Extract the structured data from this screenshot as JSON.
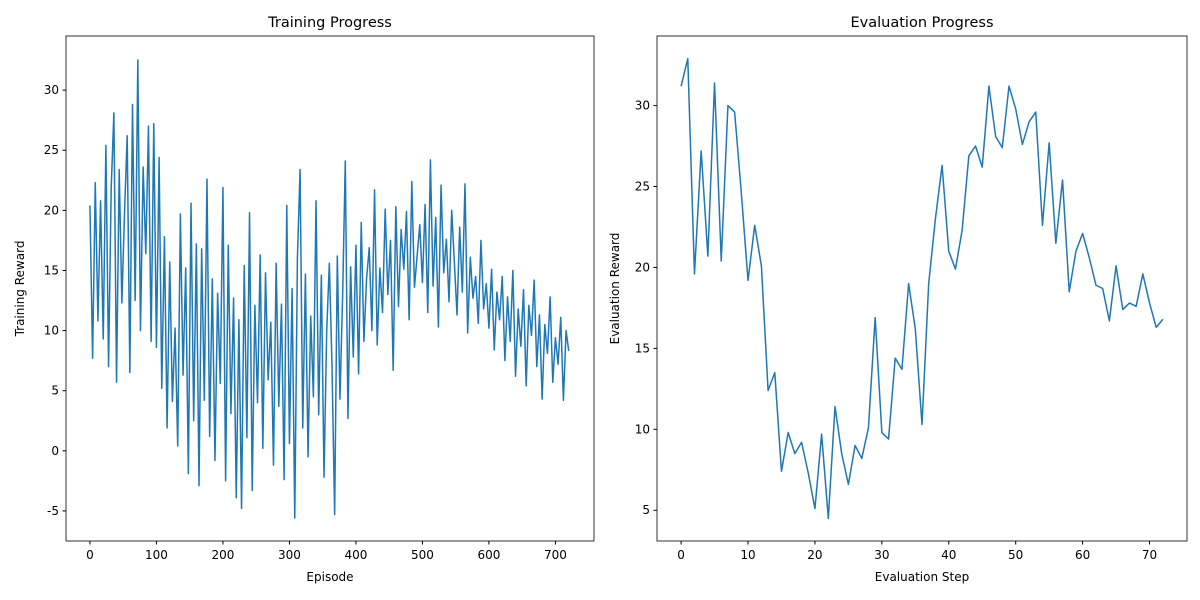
{
  "chart_data": [
    {
      "type": "line",
      "title": "Training Progress",
      "xlabel": "Episode",
      "ylabel": "Training Reward",
      "color": "#1f77b4",
      "x": [
        0,
        4,
        8,
        12,
        16,
        20,
        24,
        28,
        32,
        36,
        40,
        44,
        48,
        52,
        56,
        60,
        64,
        68,
        72,
        76,
        80,
        84,
        88,
        92,
        96,
        100,
        104,
        108,
        112,
        116,
        120,
        124,
        128,
        132,
        136,
        140,
        144,
        148,
        152,
        156,
        160,
        164,
        168,
        172,
        176,
        180,
        184,
        188,
        192,
        196,
        200,
        204,
        208,
        212,
        216,
        220,
        224,
        228,
        232,
        236,
        240,
        244,
        248,
        252,
        256,
        260,
        264,
        268,
        272,
        276,
        280,
        284,
        288,
        292,
        296,
        300,
        304,
        308,
        312,
        316,
        320,
        324,
        328,
        332,
        336,
        340,
        344,
        348,
        352,
        356,
        360,
        364,
        368,
        372,
        376,
        380,
        384,
        388,
        392,
        396,
        400,
        404,
        408,
        412,
        416,
        420,
        424,
        428,
        432,
        436,
        440,
        444,
        448,
        452,
        456,
        460,
        464,
        468,
        472,
        476,
        480,
        484,
        488,
        492,
        496,
        500,
        504,
        508,
        512,
        516,
        520,
        524,
        528,
        532,
        536,
        540,
        544,
        548,
        552,
        556,
        560,
        564,
        568,
        572,
        576,
        580,
        584,
        588,
        592,
        596,
        600,
        604,
        608,
        612,
        616,
        620,
        624,
        628,
        632,
        636,
        640,
        644,
        648,
        652,
        656,
        660,
        664,
        668,
        672,
        676,
        680,
        684,
        688,
        692,
        696,
        700,
        704,
        708,
        712,
        716,
        720
      ],
      "values": [
        20.4,
        7.7,
        22.3,
        10.8,
        20.8,
        9.3,
        25.4,
        7.0,
        21.9,
        28.1,
        5.7,
        23.4,
        12.3,
        19.8,
        26.2,
        6.5,
        28.8,
        12.5,
        32.5,
        10.0,
        23.6,
        16.4,
        27.0,
        9.1,
        27.2,
        8.6,
        24.4,
        5.2,
        17.8,
        1.9,
        15.7,
        4.1,
        10.2,
        0.4,
        19.7,
        6.3,
        15.2,
        -1.9,
        20.6,
        2.5,
        17.2,
        -2.9,
        16.8,
        4.2,
        22.6,
        1.2,
        14.3,
        -0.8,
        13.1,
        5.6,
        21.9,
        -2.5,
        17.1,
        3.1,
        12.7,
        -3.9,
        10.9,
        -4.8,
        15.4,
        1.1,
        19.8,
        -3.3,
        12.1,
        4.0,
        16.3,
        0.2,
        14.8,
        5.9,
        10.7,
        -1.2,
        15.6,
        3.7,
        12.2,
        -2.4,
        20.4,
        0.6,
        13.5,
        -5.6,
        16.1,
        23.4,
        1.9,
        14.7,
        -0.5,
        11.2,
        4.5,
        20.8,
        3.0,
        14.6,
        -2.2,
        9.9,
        15.6,
        7.1,
        -5.3,
        16.2,
        4.3,
        12.9,
        24.1,
        2.7,
        15.3,
        7.8,
        17.1,
        6.4,
        19.0,
        9.1,
        14.3,
        16.9,
        10.0,
        21.7,
        8.8,
        15.2,
        11.5,
        20.1,
        13.0,
        17.5,
        6.7,
        20.3,
        12.0,
        18.4,
        15.1,
        19.9,
        10.9,
        22.4,
        13.6,
        16.2,
        18.8,
        14.0,
        20.5,
        11.5,
        24.2,
        13.7,
        19.4,
        10.3,
        22.1,
        14.8,
        17.6,
        12.4,
        20.0,
        15.7,
        11.3,
        18.6,
        13.2,
        22.2,
        9.8,
        16.1,
        12.7,
        14.5,
        10.6,
        17.5,
        11.8,
        13.9,
        10.2,
        15.1,
        8.4,
        13.2,
        10.9,
        14.5,
        7.5,
        12.8,
        9.1,
        15.0,
        6.2,
        11.8,
        8.7,
        13.4,
        5.4,
        12.1,
        9.6,
        14.2,
        7.0,
        11.3,
        4.3,
        10.5,
        8.1,
        12.8,
        5.7,
        9.4,
        7.2,
        11.1,
        4.2,
        10.0,
        8.3
      ],
      "xlim": [
        -36,
        758
      ],
      "xticks": [
        0,
        100,
        200,
        300,
        400,
        500,
        600,
        700
      ],
      "ylim": [
        -7.5,
        34.5
      ],
      "yticks": [
        -5,
        0,
        5,
        10,
        15,
        20,
        25,
        30
      ]
    },
    {
      "type": "line",
      "title": "Evaluation Progress",
      "xlabel": "Evaluation Step",
      "ylabel": "Evaluation Reward",
      "color": "#1f77b4",
      "x": [
        0,
        1,
        2,
        3,
        4,
        5,
        6,
        7,
        8,
        9,
        10,
        11,
        12,
        13,
        14,
        15,
        16,
        17,
        18,
        19,
        20,
        21,
        22,
        23,
        24,
        25,
        26,
        27,
        28,
        29,
        30,
        31,
        32,
        33,
        34,
        35,
        36,
        37,
        38,
        39,
        40,
        41,
        42,
        43,
        44,
        45,
        46,
        47,
        48,
        49,
        50,
        51,
        52,
        53,
        54,
        55,
        56,
        57,
        58,
        59,
        60,
        61,
        62,
        63,
        64,
        65,
        66,
        67,
        68,
        69,
        70,
        71,
        72
      ],
      "values": [
        31.2,
        32.9,
        19.6,
        27.2,
        20.7,
        31.4,
        20.4,
        30.0,
        29.6,
        24.6,
        19.2,
        22.6,
        20.1,
        12.4,
        13.5,
        7.4,
        9.8,
        8.5,
        9.2,
        7.3,
        5.1,
        9.7,
        4.5,
        11.4,
        8.5,
        6.6,
        9.0,
        8.2,
        10.1,
        16.9,
        9.8,
        9.4,
        14.4,
        13.7,
        19.0,
        16.2,
        10.3,
        19.0,
        23.0,
        26.3,
        21.0,
        19.9,
        22.3,
        26.9,
        27.5,
        26.2,
        31.2,
        28.1,
        27.4,
        31.2,
        29.8,
        27.6,
        29.0,
        29.6,
        22.6,
        27.7,
        21.5,
        25.4,
        18.5,
        21.0,
        22.1,
        20.6,
        18.9,
        18.7,
        16.7,
        20.1,
        17.4,
        17.8,
        17.6,
        19.6,
        17.8,
        16.3,
        16.8
      ],
      "xlim": [
        -3.6,
        75.6
      ],
      "xticks": [
        0,
        10,
        20,
        30,
        40,
        50,
        60,
        70
      ],
      "ylim": [
        3.1,
        34.3
      ],
      "yticks": [
        5,
        10,
        15,
        20,
        25,
        30
      ]
    }
  ]
}
